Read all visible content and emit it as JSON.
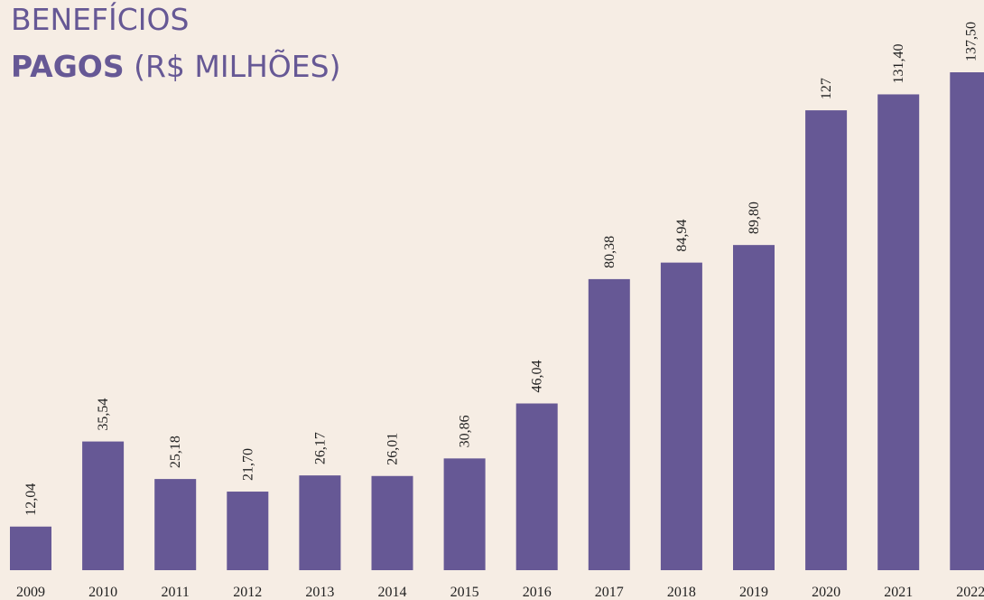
{
  "chart_data": {
    "type": "bar",
    "title_line1": "BENEFÍCIOS",
    "title_bold": "PAGOS",
    "title_rest": "(R$ MILHÕES)",
    "categories": [
      "2009",
      "2010",
      "2011",
      "2012",
      "2013",
      "2014",
      "2015",
      "2016",
      "2017",
      "2018",
      "2019",
      "2020",
      "2021",
      "2022"
    ],
    "values": [
      12.04,
      35.54,
      25.18,
      21.7,
      26.17,
      26.01,
      30.86,
      46.04,
      80.38,
      84.94,
      89.8,
      127,
      131.4,
      137.5
    ],
    "value_labels": [
      "12,04",
      "35,54",
      "25,18",
      "21,70",
      "26,17",
      "26,01",
      "30,86",
      "46,04",
      "80,38",
      "84,94",
      "89,80",
      "127",
      "131,40",
      "137,50"
    ],
    "color": "#665895"
  }
}
